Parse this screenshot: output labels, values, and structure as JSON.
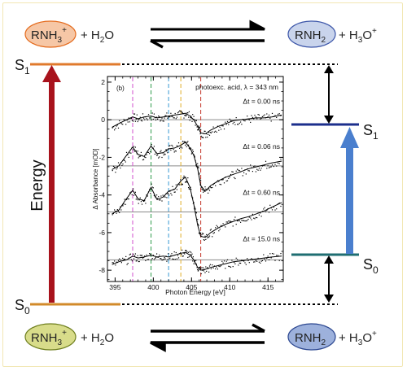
{
  "reactions": {
    "top_left": {
      "species": "RNH",
      "sub": "3",
      "sup": "+",
      "plus_water": "+ H",
      "water_sub": "2",
      "water_end": "O"
    },
    "top_right": {
      "species": "RNH",
      "sub": "2",
      "plus_hydronium": "+ H",
      "hyd_sub": "3",
      "hyd_end": "O",
      "hyd_sup": "+"
    },
    "bottom_left": {
      "species": "RNH",
      "sub": "3",
      "sup": "+",
      "plus_water": "+ H",
      "water_sub": "2",
      "water_end": "O"
    },
    "bottom_right": {
      "species": "RNH",
      "sub": "2",
      "plus_hydronium": "+ H",
      "hyd_sub": "3",
      "hyd_end": "O",
      "hyd_sup": "+"
    }
  },
  "states": {
    "left_upper": {
      "base": "S",
      "sub": "1"
    },
    "left_lower": {
      "base": "S",
      "sub": "0"
    },
    "right_upper": {
      "base": "S",
      "sub": "1"
    },
    "right_lower": {
      "base": "S",
      "sub": "0"
    }
  },
  "energy_label": "Energy",
  "colors": {
    "acid_top_fill": "#f6c7a6",
    "acid_top_stroke": "#e46a1c",
    "base_top_fill": "#c9d4ec",
    "base_top_stroke": "#3b55a8",
    "acid_bottom_fill": "#d8dc8a",
    "acid_bottom_stroke": "#6f7f1f",
    "base_bottom_fill": "#9db1dc",
    "base_bottom_stroke": "#2c4790",
    "left_s1": "#e07a2c",
    "left_s0": "#d28a2a",
    "right_s1": "#1c2f8c",
    "right_s0": "#1f6e72",
    "red_arrow": "#a8121c",
    "blue_arrow": "#4a7fce"
  },
  "chart_data": {
    "type": "line",
    "panel_label": "(b)",
    "title": "photoexc. acid, λ = 343 nm",
    "xlabel": "Photon Energy [eV]",
    "ylabel": "Δ Absorbance [mOD]",
    "xlim": [
      394.0,
      417.0
    ],
    "ylim": [
      -8.6,
      2.3
    ],
    "x_ticks": [
      395,
      400,
      405,
      410,
      415
    ],
    "y_ticks": [
      2,
      0,
      -2,
      -4,
      -6,
      -8
    ],
    "x_minor_step": 1,
    "y_minor_step": 0.5,
    "dashed_markers": [
      {
        "x": 397.3,
        "color": "#d65fd1"
      },
      {
        "x": 399.7,
        "color": "#40a35a"
      },
      {
        "x": 402.0,
        "color": "#4aa4d8"
      },
      {
        "x": 403.6,
        "color": "#e3b53b"
      },
      {
        "x": 406.2,
        "color": "#c9483d"
      }
    ],
    "baselines": [
      0,
      -2.45,
      -4.9,
      -7.45
    ],
    "series": [
      {
        "name": "Δt = 0.00 ns",
        "offset": 0,
        "x": [
          394.6,
          395.5,
          396.5,
          397.3,
          398.0,
          398.8,
          399.7,
          400.5,
          401.3,
          402.0,
          402.8,
          403.6,
          404.2,
          404.8,
          405.3,
          405.8,
          406.2,
          406.8,
          407.5,
          408.5,
          409.5,
          410.5,
          411.5,
          412.5,
          413.5,
          414.5,
          415.5,
          416.8
        ],
        "y": [
          -0.4,
          -0.2,
          0.0,
          0.15,
          0.05,
          0.15,
          0.2,
          0.1,
          0.15,
          0.2,
          0.25,
          0.3,
          0.35,
          0.2,
          0.0,
          -0.35,
          -0.7,
          -0.75,
          -0.55,
          -0.35,
          -0.2,
          -0.05,
          0.0,
          0.05,
          0.1,
          0.1,
          0.15,
          0.25
        ]
      },
      {
        "name": "Δt = 0.06 ns",
        "offset": -2.45,
        "x": [
          394.6,
          395.5,
          396.3,
          397.3,
          398.0,
          398.8,
          399.7,
          400.5,
          401.3,
          402.0,
          402.8,
          403.6,
          404.2,
          404.8,
          405.3,
          405.8,
          406.2,
          406.8,
          407.5,
          408.5,
          409.5,
          410.5,
          411.5,
          412.5,
          413.5,
          414.5,
          415.5,
          416.8
        ],
        "y": [
          -2.65,
          -2.45,
          -2.0,
          -1.45,
          -1.85,
          -1.95,
          -1.4,
          -1.8,
          -1.75,
          -1.55,
          -1.5,
          -1.35,
          -1.2,
          -1.5,
          -1.9,
          -2.6,
          -3.5,
          -3.8,
          -3.5,
          -3.25,
          -3.05,
          -2.9,
          -2.75,
          -2.6,
          -2.5,
          -2.4,
          -2.3,
          -2.2
        ]
      },
      {
        "name": "Δt = 0.60 ns",
        "offset": -4.9,
        "x": [
          394.6,
          395.5,
          396.3,
          397.3,
          398.0,
          398.8,
          399.7,
          400.5,
          401.3,
          402.0,
          402.8,
          403.6,
          404.2,
          404.8,
          405.3,
          405.8,
          406.2,
          406.8,
          407.5,
          408.5,
          409.5,
          410.5,
          411.5,
          412.5,
          413.5,
          414.5,
          415.5,
          416.8
        ],
        "y": [
          -5.0,
          -4.8,
          -4.3,
          -3.75,
          -4.2,
          -4.3,
          -3.6,
          -4.25,
          -4.1,
          -3.8,
          -3.7,
          -3.25,
          -3.05,
          -3.6,
          -4.5,
          -5.6,
          -6.2,
          -6.25,
          -6.0,
          -5.75,
          -5.55,
          -5.4,
          -5.25,
          -5.15,
          -5.0,
          -4.85,
          -4.65,
          -4.4
        ]
      },
      {
        "name": "Δt = 15.0 ns",
        "offset": -7.45,
        "x": [
          394.6,
          395.5,
          396.5,
          397.3,
          398.0,
          398.8,
          399.7,
          400.5,
          401.3,
          402.0,
          402.8,
          403.6,
          404.2,
          404.8,
          405.3,
          405.8,
          406.2,
          406.8,
          407.5,
          408.5,
          409.5,
          410.5,
          411.5,
          412.5,
          413.5,
          414.5,
          415.5,
          416.8
        ],
        "y": [
          -7.7,
          -7.55,
          -7.45,
          -7.25,
          -7.35,
          -7.3,
          -7.2,
          -7.3,
          -7.25,
          -7.3,
          -7.2,
          -7.1,
          -7.05,
          -7.2,
          -7.45,
          -7.85,
          -8.0,
          -7.95,
          -7.85,
          -7.75,
          -7.65,
          -7.55,
          -7.5,
          -7.45,
          -7.4,
          -7.35,
          -7.3,
          -7.25
        ]
      }
    ],
    "legend_labels": [
      "Δt = 0.00 ns",
      "Δt = 0.06 ns",
      "Δt = 0.60 ns",
      "Δt = 15.0 ns"
    ]
  }
}
